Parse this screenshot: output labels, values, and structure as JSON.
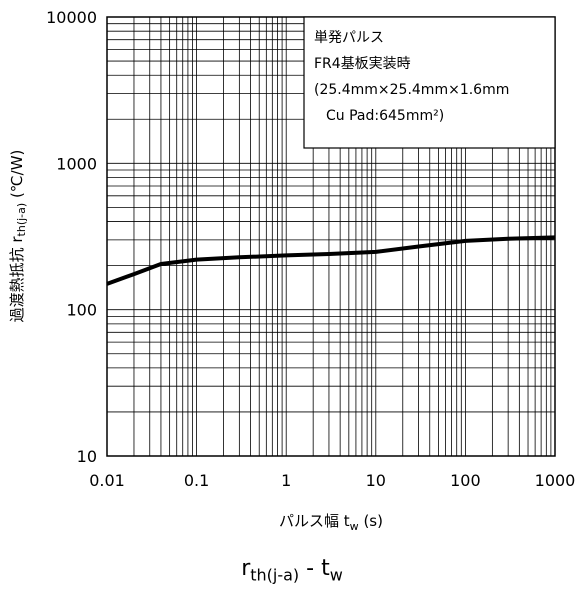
{
  "chart_data": {
    "type": "line",
    "x_scale": "log",
    "y_scale": "log",
    "xlim": [
      0.01,
      1000
    ],
    "ylim": [
      10,
      10000
    ],
    "x_ticks": [
      "0.01",
      "0.1",
      "1",
      "10",
      "100",
      "1000"
    ],
    "y_ticks": [
      "10",
      "100",
      "1000",
      "10000"
    ],
    "grid": true,
    "xlabel": {
      "text": "パルス幅  t",
      "sub": "w",
      "unit": " (s)"
    },
    "ylabel": {
      "text": "過渡熱抵抗 r",
      "sub": "th(j-a)",
      "unit": " (℃/W)"
    },
    "annotation_lines": [
      "単発パルス",
      "FR4基板実装時",
      "(25.4mm×25.4mm×1.6mm",
      "Cu Pad:645mm²)"
    ],
    "series": [
      {
        "color": "#000000",
        "x": [
          0.01,
          0.02,
          0.04,
          0.1,
          0.3,
          1,
          3,
          10,
          30,
          100,
          300,
          1000
        ],
        "y": [
          150,
          175,
          205,
          220,
          228,
          235,
          240,
          248,
          270,
          295,
          305,
          312
        ]
      }
    ]
  },
  "caption": {
    "main": "r",
    "sub1": "th(j-a)",
    "mid": " - t",
    "sub2": "w"
  }
}
